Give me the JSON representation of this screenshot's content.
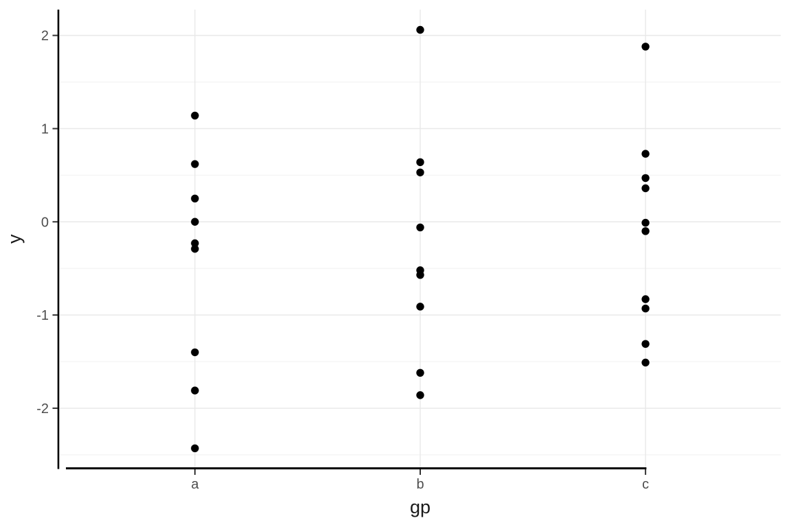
{
  "chart_data": {
    "type": "scatter",
    "title": "",
    "xlabel": "gp",
    "ylabel": "y",
    "categories": [
      "a",
      "b",
      "c"
    ],
    "series": [
      {
        "name": "a",
        "values": [
          1.14,
          0.62,
          0.25,
          0.0,
          -0.23,
          -0.29,
          -1.4,
          -1.81,
          -2.43
        ]
      },
      {
        "name": "b",
        "values": [
          2.06,
          0.64,
          0.53,
          -0.06,
          -0.52,
          -0.57,
          -0.91,
          -1.62,
          -1.86
        ]
      },
      {
        "name": "c",
        "values": [
          1.88,
          0.73,
          0.47,
          0.36,
          -0.01,
          -0.1,
          -0.83,
          -0.93,
          -1.31,
          -1.51
        ]
      }
    ],
    "y_tick_labels": [
      "2",
      "1",
      "0",
      "-1",
      "-2"
    ],
    "y_tick_values": [
      2,
      1,
      0,
      -1,
      -2
    ],
    "y_minor_values": [
      1.5,
      0.5,
      -0.5,
      -1.5,
      -2.5
    ],
    "ylim": [
      -2.645,
      2.277
    ],
    "grid": true,
    "legend": false,
    "colors": {
      "point": "#000000",
      "grid_major": "#e8e8e8",
      "grid_minor": "#f2f2f2",
      "axis_line": "#000000",
      "tick_mark": "#333333",
      "tick_label": "#4d4d4d",
      "axis_title": "#1a1a1a",
      "background": "#ffffff"
    }
  }
}
